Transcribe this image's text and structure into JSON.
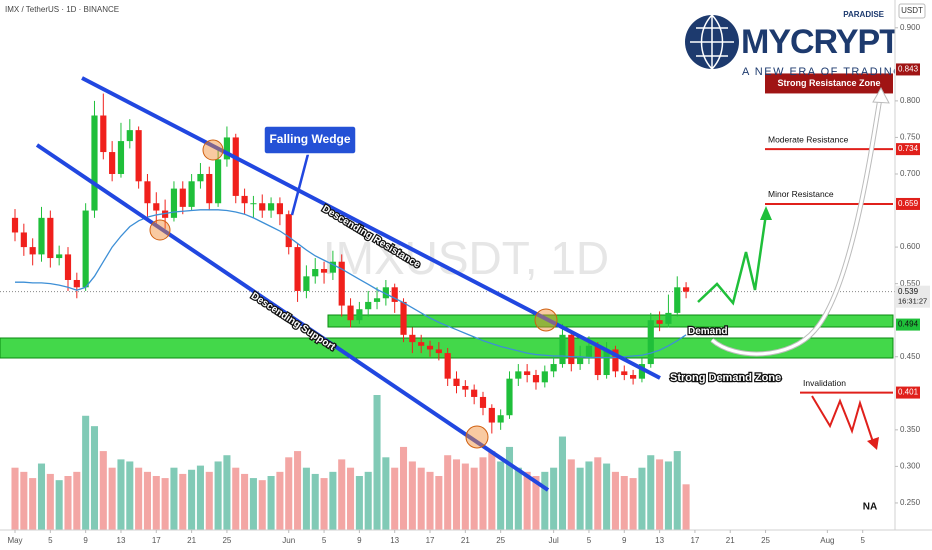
{
  "chart_data": {
    "type": "candlestick",
    "header": "IMX / TetherUS · 1D · BINANCE",
    "watermark": "IMXUSDT, 1D",
    "currency": "USDT",
    "logo": {
      "name": "MYCRYPTO",
      "tag": "PARADISE",
      "slogan": "A NEW ERA OF TRADING"
    },
    "up_color": "#1fbf3a",
    "down_color": "#f0201c",
    "x": [
      1,
      2,
      3,
      4,
      5,
      6,
      7,
      8,
      9,
      10,
      11,
      12,
      13,
      14,
      15,
      16,
      17,
      18,
      19,
      20,
      21,
      22,
      23,
      24,
      25,
      26,
      27,
      28,
      29,
      30,
      31,
      32,
      33,
      34,
      35,
      36,
      37,
      38,
      39,
      40,
      41,
      42,
      43,
      44,
      45,
      46,
      47,
      48,
      49,
      50,
      51,
      52,
      53,
      54,
      55,
      56,
      57,
      58,
      59,
      60,
      61,
      62,
      63,
      64,
      65,
      66,
      67,
      68,
      69,
      70,
      71,
      72,
      73,
      74,
      75,
      76,
      77
    ],
    "open": [
      0.64,
      0.62,
      0.6,
      0.59,
      0.64,
      0.585,
      0.59,
      0.555,
      0.545,
      0.65,
      0.78,
      0.73,
      0.7,
      0.745,
      0.76,
      0.69,
      0.66,
      0.65,
      0.64,
      0.68,
      0.655,
      0.69,
      0.7,
      0.66,
      0.72,
      0.75,
      0.67,
      0.66,
      0.66,
      0.65,
      0.66,
      0.645,
      0.6,
      0.54,
      0.56,
      0.57,
      0.565,
      0.58,
      0.52,
      0.5,
      0.515,
      0.525,
      0.53,
      0.545,
      0.525,
      0.48,
      0.47,
      0.465,
      0.46,
      0.455,
      0.42,
      0.41,
      0.405,
      0.395,
      0.38,
      0.36,
      0.37,
      0.42,
      0.43,
      0.425,
      0.415,
      0.43,
      0.44,
      0.48,
      0.44,
      0.45,
      0.465,
      0.425,
      0.46,
      0.43,
      0.425,
      0.42,
      0.44,
      0.5,
      0.495,
      0.51,
      0.545
    ],
    "high": [
      0.652,
      0.632,
      0.612,
      0.655,
      0.65,
      0.602,
      0.6,
      0.565,
      0.66,
      0.8,
      0.81,
      0.745,
      0.77,
      0.775,
      0.765,
      0.7,
      0.675,
      0.665,
      0.69,
      0.69,
      0.7,
      0.715,
      0.71,
      0.735,
      0.765,
      0.755,
      0.68,
      0.67,
      0.672,
      0.668,
      0.668,
      0.65,
      0.605,
      0.575,
      0.585,
      0.58,
      0.595,
      0.59,
      0.53,
      0.525,
      0.54,
      0.545,
      0.555,
      0.55,
      0.53,
      0.49,
      0.48,
      0.472,
      0.47,
      0.462,
      0.43,
      0.418,
      0.412,
      0.402,
      0.385,
      0.378,
      0.43,
      0.44,
      0.44,
      0.432,
      0.438,
      0.45,
      0.495,
      0.485,
      0.465,
      0.478,
      0.47,
      0.47,
      0.465,
      0.438,
      0.432,
      0.448,
      0.51,
      0.512,
      0.535,
      0.56,
      0.552
    ],
    "low": [
      0.608,
      0.588,
      0.575,
      0.58,
      0.572,
      0.575,
      0.54,
      0.53,
      0.54,
      0.64,
      0.72,
      0.69,
      0.695,
      0.735,
      0.68,
      0.64,
      0.63,
      0.625,
      0.635,
      0.645,
      0.65,
      0.68,
      0.65,
      0.655,
      0.71,
      0.66,
      0.645,
      0.64,
      0.64,
      0.64,
      0.63,
      0.59,
      0.525,
      0.53,
      0.55,
      0.55,
      0.555,
      0.505,
      0.49,
      0.495,
      0.505,
      0.515,
      0.52,
      0.51,
      0.47,
      0.455,
      0.455,
      0.45,
      0.445,
      0.41,
      0.4,
      0.395,
      0.385,
      0.37,
      0.345,
      0.35,
      0.365,
      0.41,
      0.415,
      0.405,
      0.408,
      0.422,
      0.435,
      0.43,
      0.432,
      0.44,
      0.418,
      0.42,
      0.422,
      0.418,
      0.412,
      0.415,
      0.435,
      0.485,
      0.49,
      0.505,
      0.53
    ],
    "close": [
      0.62,
      0.6,
      0.59,
      0.64,
      0.585,
      0.59,
      0.555,
      0.545,
      0.65,
      0.78,
      0.73,
      0.7,
      0.745,
      0.76,
      0.69,
      0.66,
      0.65,
      0.64,
      0.68,
      0.655,
      0.69,
      0.7,
      0.66,
      0.72,
      0.75,
      0.67,
      0.66,
      0.66,
      0.65,
      0.66,
      0.645,
      0.6,
      0.54,
      0.56,
      0.57,
      0.565,
      0.58,
      0.52,
      0.5,
      0.515,
      0.525,
      0.53,
      0.545,
      0.525,
      0.48,
      0.47,
      0.465,
      0.46,
      0.455,
      0.42,
      0.41,
      0.405,
      0.395,
      0.38,
      0.36,
      0.37,
      0.42,
      0.43,
      0.425,
      0.415,
      0.43,
      0.44,
      0.48,
      0.44,
      0.45,
      0.465,
      0.425,
      0.46,
      0.43,
      0.425,
      0.42,
      0.44,
      0.5,
      0.495,
      0.51,
      0.545,
      0.539
    ],
    "volume": [
      30,
      28,
      25,
      32,
      27,
      24,
      26,
      28,
      55,
      50,
      38,
      30,
      34,
      33,
      30,
      28,
      26,
      25,
      30,
      27,
      29,
      31,
      28,
      33,
      36,
      30,
      27,
      25,
      24,
      26,
      28,
      35,
      38,
      30,
      27,
      25,
      28,
      34,
      30,
      26,
      28,
      65,
      35,
      30,
      40,
      33,
      30,
      28,
      26,
      36,
      34,
      32,
      30,
      35,
      38,
      33,
      40,
      30,
      28,
      26,
      28,
      30,
      45,
      34,
      30,
      33,
      35,
      32,
      28,
      26,
      25,
      30,
      36,
      34,
      33,
      38,
      22
    ],
    "ma": {
      "color": "#3d8fd6",
      "values": [
        0.552,
        0.552,
        0.551,
        0.551,
        0.55,
        0.548,
        0.545,
        0.541,
        0.545,
        0.56,
        0.58,
        0.6,
        0.615,
        0.628,
        0.636,
        0.641,
        0.644,
        0.646,
        0.648,
        0.649,
        0.65,
        0.651,
        0.651,
        0.651,
        0.65,
        0.648,
        0.645,
        0.64,
        0.634,
        0.628,
        0.622,
        0.614,
        0.605,
        0.596,
        0.588,
        0.582,
        0.576,
        0.57,
        0.563,
        0.556,
        0.549,
        0.542,
        0.536,
        0.53,
        0.524,
        0.517,
        0.51,
        0.503,
        0.497,
        0.492,
        0.487,
        0.482,
        0.477,
        0.472,
        0.468,
        0.464,
        0.461,
        0.458,
        0.455,
        0.453,
        0.452,
        0.451,
        0.451,
        0.45,
        0.45,
        0.449,
        0.449,
        0.449,
        0.449,
        0.45,
        0.451,
        0.452,
        0.455,
        0.459,
        0.465,
        0.472,
        0.48
      ]
    },
    "xlim": [
      -0.7,
      100.66
    ],
    "xticks": [
      {
        "value": 1,
        "label": "May"
      },
      {
        "value": 5,
        "label": "5"
      },
      {
        "value": 9,
        "label": "9"
      },
      {
        "value": 13,
        "label": "13"
      },
      {
        "value": 17,
        "label": "17"
      },
      {
        "value": 21,
        "label": "21"
      },
      {
        "value": 25,
        "label": "25"
      },
      {
        "value": 32,
        "label": "Jun"
      },
      {
        "value": 36,
        "label": "5"
      },
      {
        "value": 40,
        "label": "9"
      },
      {
        "value": 44,
        "label": "13"
      },
      {
        "value": 48,
        "label": "17"
      },
      {
        "value": 52,
        "label": "21"
      },
      {
        "value": 56,
        "label": "25"
      },
      {
        "value": 62,
        "label": "Jul"
      },
      {
        "value": 66,
        "label": "5"
      },
      {
        "value": 70,
        "label": "9"
      },
      {
        "value": 74,
        "label": "13"
      },
      {
        "value": 78,
        "label": "17"
      },
      {
        "value": 82,
        "label": "21"
      },
      {
        "value": 86,
        "label": "25"
      },
      {
        "value": 93,
        "label": "Aug"
      },
      {
        "value": 97,
        "label": "5"
      }
    ],
    "ylim": [
      0.213,
      0.938
    ],
    "yticks": [
      {
        "value": 0.9,
        "label": "0.900"
      },
      {
        "value": 0.8,
        "label": "0.800"
      },
      {
        "value": 0.75,
        "label": "0.750"
      },
      {
        "value": 0.7,
        "label": "0.700"
      },
      {
        "value": 0.6,
        "label": "0.600"
      },
      {
        "value": 0.55,
        "label": "0.550"
      },
      {
        "value": 0.45,
        "label": "0.450"
      },
      {
        "value": 0.35,
        "label": "0.350"
      },
      {
        "value": 0.3,
        "label": "0.300"
      },
      {
        "value": 0.25,
        "label": "0.250"
      }
    ],
    "levels": [
      {
        "label": "Strong Resistance Zone",
        "value": 0.843,
        "color": "#a01414"
      },
      {
        "label": "Moderate Resistance",
        "value": 0.734,
        "color": "#e0201b"
      },
      {
        "label": "Minor Resistance",
        "value": 0.659,
        "color": "#e0201b"
      },
      {
        "label": "Invalidation",
        "value": 0.401,
        "color": "#e0201b"
      }
    ],
    "demand": {
      "label": "Demand",
      "value": 0.494,
      "color": "#1fbf3a"
    },
    "last_price": {
      "value": 0.539,
      "countdown": "16:31:27"
    },
    "annotations": {
      "falling_wedge": "Falling Wedge",
      "descending_resistance": "Descending Resistance",
      "descending_support": "Descending Support",
      "strong_demand_zone": "Strong Demand Zone",
      "na": "NA"
    }
  }
}
